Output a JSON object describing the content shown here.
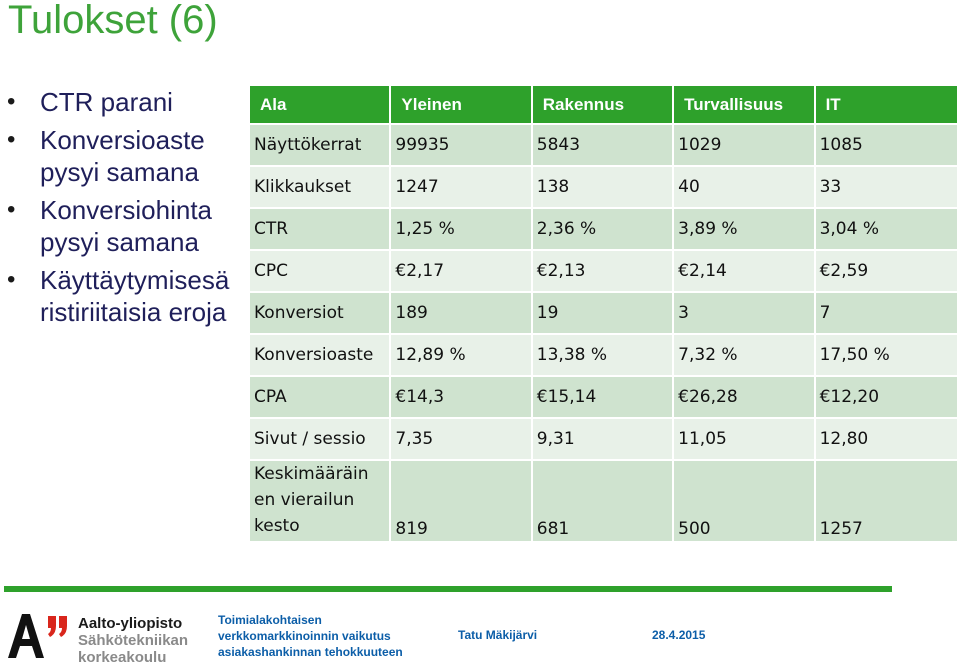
{
  "title": "Tulokset (6)",
  "bullets": [
    "CTR parani",
    "Konversioaste pysyi samana",
    "Konversiohinta pysyi samana",
    "Käyttäytymisesä ristiriitaisia eroja"
  ],
  "table": {
    "headers": [
      "Ala",
      "Yleinen",
      "Rakennus",
      "Turvallisuus",
      "IT"
    ],
    "rows": [
      {
        "label": "Näyttökerrat",
        "values": [
          "99935",
          "5843",
          "1029",
          "1085"
        ]
      },
      {
        "label": "Klikkaukset",
        "values": [
          "1247",
          "138",
          "40",
          "33"
        ]
      },
      {
        "label": "CTR",
        "values": [
          "1,25 %",
          "2,36 %",
          "3,89 %",
          "3,04 %"
        ]
      },
      {
        "label": "CPC",
        "values": [
          "€2,17",
          "€2,13",
          "€2,14",
          "€2,59"
        ]
      },
      {
        "label": "Konversiot",
        "values": [
          "189",
          "19",
          "3",
          "7"
        ]
      },
      {
        "label": "Konversioaste",
        "values": [
          "12,89 %",
          "13,38 %",
          "7,32 %",
          "17,50 %"
        ]
      },
      {
        "label": "CPA",
        "values": [
          "€14,3",
          "€15,14",
          "€26,28",
          "€12,20"
        ]
      },
      {
        "label": "Sivut / sessio",
        "values": [
          "7,35",
          "9,31",
          "11,05",
          "12,80"
        ]
      },
      {
        "label": "Keskimääräin en vierailun kesto",
        "values": [
          "819",
          "681",
          "500",
          "1257"
        ]
      }
    ]
  },
  "footer": {
    "logo": {
      "line1": "Aalto-yliopisto",
      "line2": "Sähkötekniikan",
      "line3": "korkeakoulu",
      "mark_color": "#111111",
      "quote_color": "#d9261c"
    },
    "topic": [
      "Toimialakohtaisen",
      "verkkomarkkinoinnin vaikutus",
      "asiakashankinnan tehokkuuteen"
    ],
    "author": "Tatu Mäkijärvi",
    "date": "28.4.2015"
  }
}
